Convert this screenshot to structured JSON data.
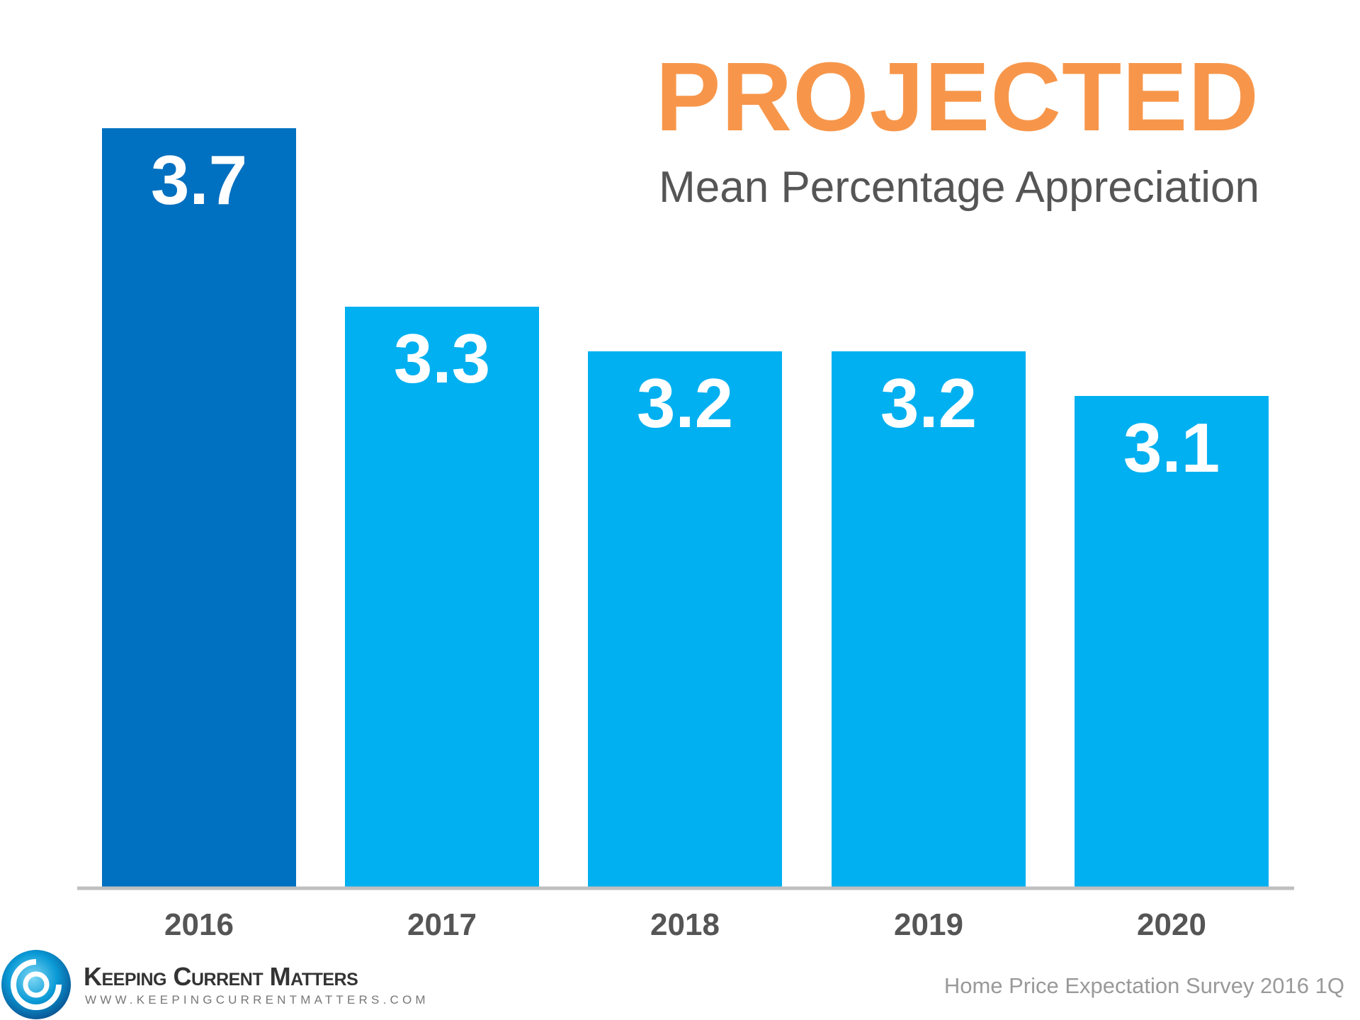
{
  "chart_data": {
    "type": "bar",
    "title": "PROJECTED",
    "subtitle": "Mean Percentage Appreciation",
    "categories": [
      "2016",
      "2017",
      "2018",
      "2019",
      "2020"
    ],
    "values": [
      3.7,
      3.3,
      3.2,
      3.2,
      3.1
    ],
    "value_labels": [
      "3.7",
      "3.3",
      "3.2",
      "3.2",
      "3.1"
    ],
    "ylim": [
      2.0,
      3.8
    ],
    "grid": false,
    "colors": {
      "highlight": "#0070c0",
      "default": "#00b0f0",
      "title": "#f7964a",
      "axis": "#bfbfbf"
    },
    "highlight_index": 0
  },
  "source": "Home Price Expectation Survey 2016 1Q",
  "logo": {
    "name": "Keeping Current Matters",
    "url": "WWW.KEEPINGCURRENTMATTERS.COM"
  }
}
